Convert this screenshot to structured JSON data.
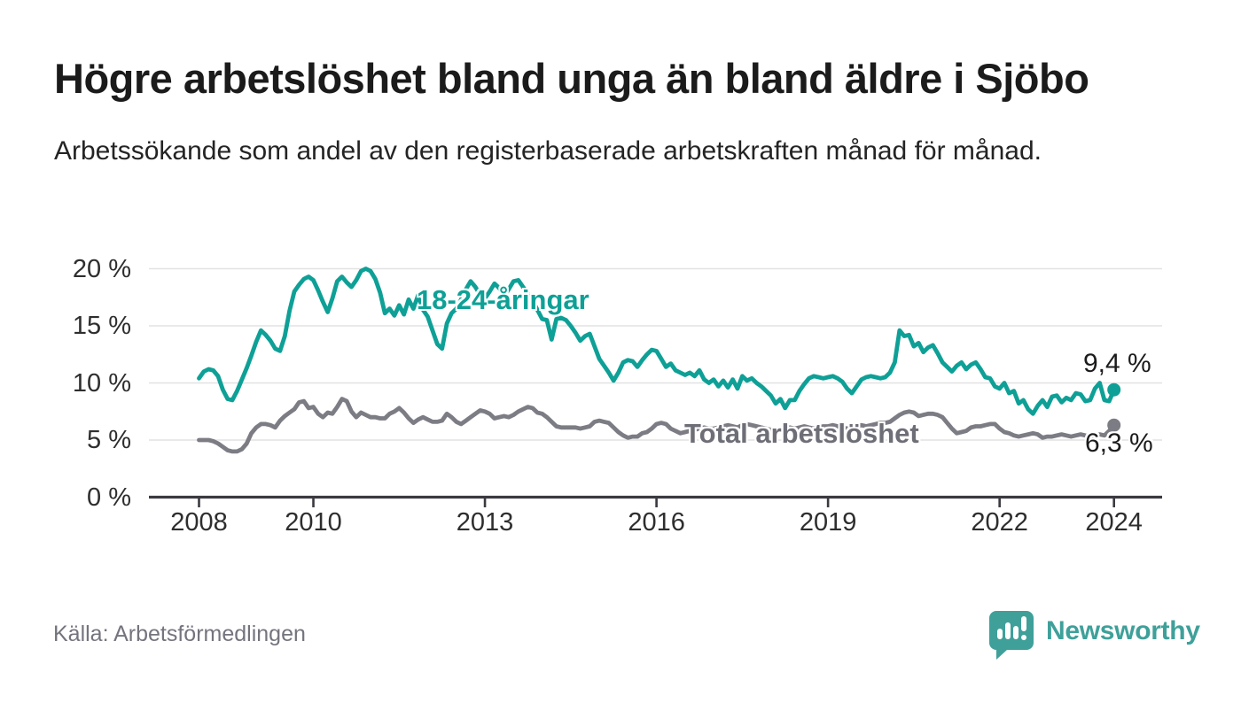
{
  "title": "Högre arbetslöshet bland unga än bland äldre i Sjöbo",
  "subtitle": "Arbetssökande som andel av den registerbaserade arbetskraften månad för månad.",
  "source": "Källa: Arbetsförmedlingen",
  "branding": {
    "name": "Newsworthy",
    "logo_icon": "bar-chart-speech-bubble",
    "brand_color": "#3FA09A"
  },
  "chart_data": {
    "type": "line",
    "title": "Högre arbetslöshet bland unga än bland äldre i Sjöbo",
    "xlabel": "",
    "ylabel": "",
    "x_start": "2008-01",
    "x_end": "2024-01",
    "x_interval": "monthly",
    "ylim": [
      0,
      21
    ],
    "grid": "horizontal",
    "legend_position": "inline-labels",
    "x_ticks": [
      {
        "label": "2008",
        "month": 0
      },
      {
        "label": "2010",
        "month": 24
      },
      {
        "label": "2013",
        "month": 60
      },
      {
        "label": "2016",
        "month": 96
      },
      {
        "label": "2019",
        "month": 132
      },
      {
        "label": "2022",
        "month": 168
      },
      {
        "label": "2024",
        "month": 192
      }
    ],
    "y_ticks": [
      {
        "label": "0 %",
        "value": 0
      },
      {
        "label": "5 %",
        "value": 5
      },
      {
        "label": "10 %",
        "value": 10
      },
      {
        "label": "15 %",
        "value": 15
      },
      {
        "label": "20 %",
        "value": 20
      }
    ],
    "series": [
      {
        "name": "Total arbetslöshet",
        "label_text": "Total arbetslöshet",
        "color": "#7c7c84",
        "end_label": "6,3 %",
        "end_value": 6.3,
        "values": [
          5.0,
          5.0,
          5.0,
          4.9,
          4.7,
          4.4,
          4.1,
          4.0,
          4.0,
          4.2,
          4.7,
          5.6,
          6.1,
          6.4,
          6.4,
          6.3,
          6.1,
          6.7,
          7.1,
          7.4,
          7.7,
          8.3,
          8.4,
          7.8,
          7.9,
          7.3,
          7.0,
          7.4,
          7.3,
          7.9,
          8.6,
          8.4,
          7.5,
          7.0,
          7.4,
          7.2,
          7.0,
          7.0,
          6.9,
          6.9,
          7.3,
          7.5,
          7.8,
          7.4,
          6.9,
          6.5,
          6.8,
          7.0,
          6.8,
          6.6,
          6.6,
          6.7,
          7.3,
          7.0,
          6.6,
          6.4,
          6.7,
          7.0,
          7.3,
          7.6,
          7.5,
          7.3,
          6.9,
          7.0,
          7.1,
          7.0,
          7.2,
          7.5,
          7.7,
          7.9,
          7.8,
          7.4,
          7.3,
          7.0,
          6.6,
          6.2,
          6.1,
          6.1,
          6.1,
          6.1,
          6.0,
          6.1,
          6.2,
          6.6,
          6.7,
          6.6,
          6.5,
          6.1,
          5.7,
          5.4,
          5.2,
          5.3,
          5.3,
          5.6,
          5.7,
          6.0,
          6.4,
          6.5,
          6.4,
          6.0,
          5.8,
          5.6,
          5.7,
          5.8,
          5.9,
          6.0,
          6.1,
          6.0,
          6.0,
          6.1,
          6.2,
          6.3,
          6.2,
          6.1,
          6.3,
          6.4,
          6.3,
          6.2,
          6.1,
          6.0,
          5.9,
          5.8,
          5.9,
          6.0,
          6.1,
          6.0,
          6.1,
          6.2,
          6.1,
          6.0,
          6.1,
          6.2,
          6.2,
          6.3,
          6.2,
          6.1,
          6.0,
          6.1,
          6.2,
          6.3,
          6.2,
          6.3,
          6.4,
          6.5,
          6.5,
          6.6,
          6.9,
          7.2,
          7.4,
          7.5,
          7.4,
          7.1,
          7.2,
          7.3,
          7.3,
          7.2,
          7.0,
          6.5,
          6.0,
          5.6,
          5.7,
          5.8,
          6.1,
          6.2,
          6.2,
          6.3,
          6.4,
          6.4,
          6.0,
          5.7,
          5.6,
          5.4,
          5.3,
          5.4,
          5.5,
          5.6,
          5.5,
          5.2,
          5.3,
          5.3,
          5.4,
          5.5,
          5.4,
          5.3,
          5.4,
          5.5,
          5.4,
          5.3,
          5.4,
          5.5,
          5.4,
          5.8,
          6.3
        ]
      },
      {
        "name": "18-24-åringar",
        "label_text": "18-24-åringar",
        "color": "#0ea096",
        "end_label": "9,4 %",
        "end_value": 9.4,
        "values": [
          10.4,
          11.0,
          11.2,
          11.1,
          10.6,
          9.4,
          8.6,
          8.5,
          9.3,
          10.3,
          11.3,
          12.4,
          13.6,
          14.6,
          14.2,
          13.7,
          13.0,
          12.8,
          14.1,
          16.3,
          18.0,
          18.6,
          19.1,
          19.3,
          19.0,
          18.1,
          17.1,
          16.2,
          17.4,
          18.9,
          19.3,
          18.8,
          18.4,
          19.0,
          19.8,
          20.0,
          19.8,
          19.1,
          17.9,
          16.1,
          16.5,
          15.9,
          16.8,
          16.0,
          17.3,
          16.5,
          17.7,
          16.4,
          15.8,
          14.6,
          13.4,
          13.0,
          15.2,
          16.1,
          16.5,
          17.3,
          18.2,
          18.9,
          18.4,
          17.7,
          17.4,
          18.0,
          18.7,
          18.3,
          17.6,
          18.2,
          18.9,
          19.0,
          18.4,
          17.8,
          17.2,
          16.4,
          15.6,
          15.5,
          13.8,
          15.6,
          15.7,
          15.5,
          15.0,
          14.4,
          13.7,
          14.1,
          14.3,
          13.2,
          12.1,
          11.5,
          10.9,
          10.2,
          10.9,
          11.8,
          12.0,
          11.9,
          11.4,
          12.0,
          12.5,
          12.9,
          12.8,
          12.1,
          11.4,
          11.7,
          11.1,
          10.9,
          10.7,
          10.9,
          10.6,
          11.1,
          10.3,
          10.0,
          10.3,
          9.7,
          10.2,
          9.6,
          10.3,
          9.5,
          10.6,
          10.2,
          10.4,
          10.0,
          9.7,
          9.3,
          8.9,
          8.2,
          8.6,
          7.8,
          8.5,
          8.5,
          9.3,
          9.9,
          10.4,
          10.6,
          10.5,
          10.4,
          10.5,
          10.6,
          10.4,
          10.1,
          9.5,
          9.1,
          9.7,
          10.3,
          10.5,
          10.6,
          10.5,
          10.4,
          10.5,
          10.9,
          11.8,
          14.6,
          14.1,
          14.2,
          13.2,
          13.5,
          12.7,
          13.1,
          13.3,
          12.6,
          11.8,
          11.4,
          11.0,
          11.5,
          11.8,
          11.2,
          11.6,
          11.8,
          11.2,
          10.5,
          10.4,
          9.7,
          9.5,
          10.0,
          9.1,
          9.3,
          8.2,
          8.5,
          7.7,
          7.3,
          8.0,
          8.5,
          7.9,
          8.8,
          8.9,
          8.3,
          8.7,
          8.5,
          9.1,
          9.0,
          8.4,
          8.5,
          9.5,
          10.0,
          8.5,
          8.4,
          9.4
        ]
      }
    ]
  }
}
